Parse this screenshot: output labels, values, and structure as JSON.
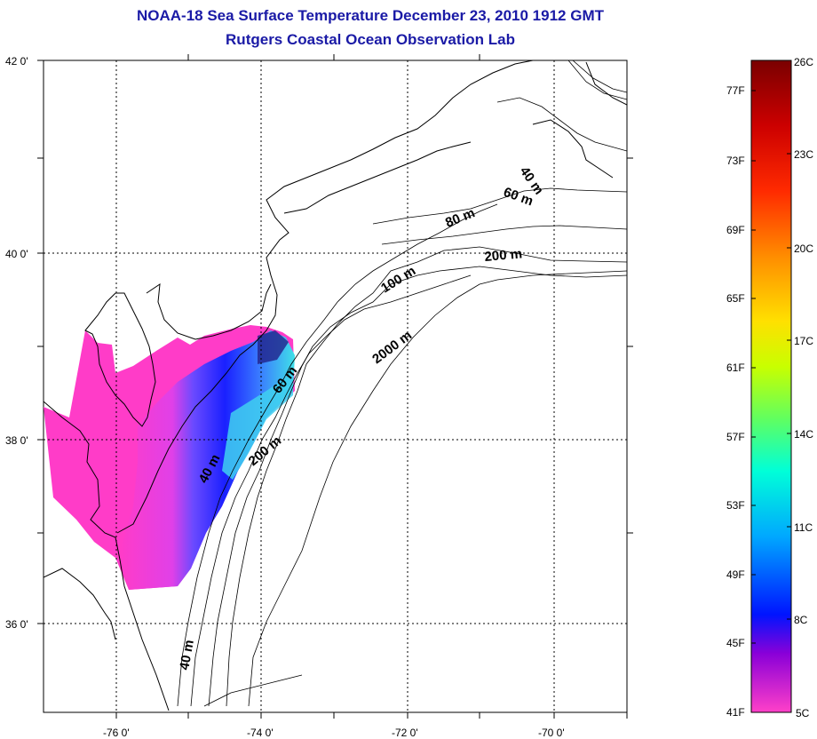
{
  "title": {
    "line1": "NOAA-18 Sea Surface Temperature December 23, 2010 1912 GMT",
    "line2": "Rutgers Coastal Ocean Observation Lab"
  },
  "map": {
    "lat_labels": [
      "42 0'",
      "40 0'",
      "38 0'",
      "36 0'"
    ],
    "lon_labels": [
      "-76 0'",
      "-74 0'",
      "-72 0'",
      "-70 0'"
    ],
    "depth_labels": [
      "40 m",
      "60 m",
      "80 m",
      "200 m",
      "100 m",
      "2000 m",
      "60 m",
      "40 m",
      "200 m",
      "40 m"
    ]
  },
  "colorbar": {
    "fahrenheit": [
      "77F",
      "73F",
      "69F",
      "65F",
      "61F",
      "57F",
      "53F",
      "49F",
      "45F",
      "41F"
    ],
    "celsius": [
      "26C",
      "23C",
      "20C",
      "17C",
      "14C",
      "11C",
      "8C",
      "5C"
    ],
    "colors": [
      "#7a0000",
      "#ff0000",
      "#ff8c00",
      "#ffff00",
      "#7dff3c",
      "#00ffd0",
      "#00a0ff",
      "#0018ff",
      "#7a00e0",
      "#ff40c8"
    ]
  },
  "chart_data": {
    "type": "heatmap",
    "title": "NOAA-18 Sea Surface Temperature December 23, 2010 1912 GMT",
    "subtitle": "Rutgers Coastal Ocean Observation Lab",
    "xlabel": "",
    "ylabel": "",
    "x_ticks": [
      "-76 0'",
      "-74 0'",
      "-72 0'",
      "-70 0'"
    ],
    "y_ticks": [
      "42 0'",
      "40 0'",
      "38 0'",
      "36 0'"
    ],
    "xlim": [
      -77,
      -69
    ],
    "ylim": [
      35,
      42
    ],
    "grid": true,
    "colorbar_range_C": [
      5,
      26
    ],
    "colorbar_range_F": [
      41,
      79
    ]
  }
}
